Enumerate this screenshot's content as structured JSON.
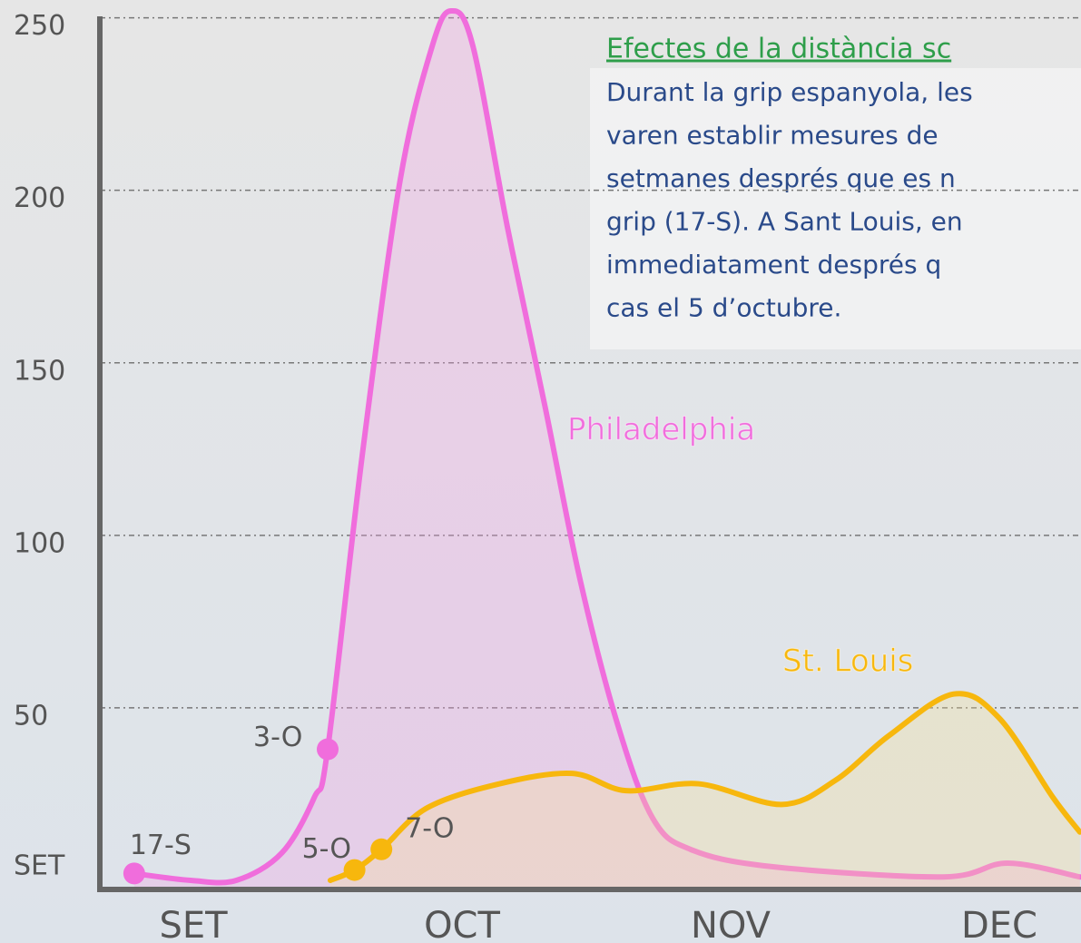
{
  "chart_data": {
    "type": "line",
    "title": "Efectes de la distància sc",
    "text": [
      "Durant la grip espanyola, les",
      "varen establir mesures de",
      "setmanes després que es n",
      "grip (17-S). A Sant Louis, en",
      "immediatament després q",
      "cas el 5 d’octubre."
    ],
    "xlim": [
      -0.35,
      3.3
    ],
    "xticks": [
      {
        "value": 0,
        "label": "SET"
      },
      {
        "value": 1,
        "label": "OCT"
      },
      {
        "value": 2,
        "label": "NOV"
      },
      {
        "value": 3,
        "label": "DEC"
      }
    ],
    "ylim": [
      0,
      252
    ],
    "yticks": [
      {
        "value": 0,
        "label": "SET"
      },
      50,
      100,
      150,
      200,
      250
    ],
    "grid": true,
    "series": [
      {
        "name": "Philadelphia",
        "color": "#f06ddc",
        "fill": "rgba(245,160,230,0.3)",
        "x": [
          -0.22,
          -0.01,
          0.16,
          0.33,
          0.45,
          0.5,
          0.63,
          0.77,
          0.89,
          0.96,
          1.04,
          1.17,
          1.31,
          1.44,
          1.58,
          1.71,
          1.85,
          2.15,
          2.79,
          3.03,
          3.3
        ],
        "values": [
          2,
          0,
          0,
          8,
          24,
          38,
          124,
          203,
          242,
          252,
          242,
          189,
          137,
          87,
          45,
          18,
          9,
          4,
          1,
          5,
          1
        ]
      },
      {
        "name": "St. Louis",
        "color": "#f7b70d",
        "fill": "rgba(250,225,150,0.3)",
        "x": [
          0.51,
          0.6,
          0.7,
          0.87,
          1.14,
          1.41,
          1.61,
          1.88,
          2.19,
          2.39,
          2.59,
          2.83,
          3.0,
          3.2,
          3.3
        ],
        "values": [
          0,
          3,
          9,
          21,
          28,
          31,
          26,
          28,
          22,
          29,
          42,
          54,
          47,
          24,
          14
        ]
      }
    ],
    "annotations": [
      {
        "text": "17-S",
        "x": -0.22,
        "y": 2,
        "color": "#f06ddc"
      },
      {
        "text": "3-O",
        "x": 0.5,
        "y": 38,
        "color": "#f06ddc"
      },
      {
        "text": "5-O",
        "x": 0.6,
        "y": 3,
        "color": "#f7b70d"
      },
      {
        "text": "7-O",
        "x": 0.7,
        "y": 9,
        "color": "#f7b70d"
      }
    ]
  }
}
